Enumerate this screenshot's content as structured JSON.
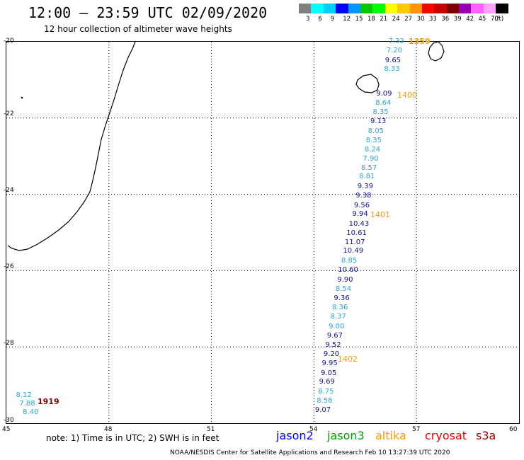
{
  "header": {
    "title": "12:00 – 23:59 UTC 02/09/2020",
    "subtitle": "12 hour collection of altimeter wave heights"
  },
  "legend": {
    "colors": [
      "#808080",
      "#00ffff",
      "#00d0ff",
      "#0000ff",
      "#0096ff",
      "#00c800",
      "#00ff00",
      "#ffff00",
      "#ffc800",
      "#ff9600",
      "#ff0000",
      "#c80000",
      "#800000",
      "#9600b4",
      "#ff64ff",
      "#ffa0ff",
      "#000000"
    ],
    "labels": [
      "3",
      "6",
      "9",
      "12",
      "15",
      "18",
      "21",
      "24",
      "27",
      "30",
      "33",
      "36",
      "39",
      "42",
      "45",
      "70",
      "(ft)"
    ]
  },
  "axes": {
    "x_ticks": [
      "45",
      "48",
      "51",
      "54",
      "57",
      "60"
    ],
    "y_ticks": [
      "-20",
      "-22",
      "-24",
      "-26",
      "-28",
      "-30"
    ]
  },
  "passes": [
    {
      "label": "1359"
    },
    {
      "label": "1400"
    },
    {
      "label": "1401"
    },
    {
      "label": "1402"
    },
    {
      "label": "1919"
    }
  ],
  "observations": [
    {
      "v": "7.32",
      "lon": 56.18,
      "lat": -20.0,
      "c": "#2aa6d8"
    },
    {
      "v": "7.20",
      "lon": 56.12,
      "lat": -20.25,
      "c": "#2aa6d8"
    },
    {
      "v": "9.65",
      "lon": 56.08,
      "lat": -20.5,
      "c": "#1010a0"
    },
    {
      "v": "8.33",
      "lon": 56.05,
      "lat": -20.73,
      "c": "#2aa6d8"
    },
    {
      "v": "9.09",
      "lon": 55.82,
      "lat": -21.38,
      "c": "#1010a0"
    },
    {
      "v": "8.64",
      "lon": 55.8,
      "lat": -21.62,
      "c": "#2aa6d8"
    },
    {
      "v": "8.35",
      "lon": 55.72,
      "lat": -21.85,
      "c": "#2aa6d8"
    },
    {
      "v": "9.13",
      "lon": 55.65,
      "lat": -22.1,
      "c": "#1010a0"
    },
    {
      "v": "8.05",
      "lon": 55.58,
      "lat": -22.35,
      "c": "#2aa6d8"
    },
    {
      "v": "8.35",
      "lon": 55.52,
      "lat": -22.6,
      "c": "#2aa6d8"
    },
    {
      "v": "8.24",
      "lon": 55.48,
      "lat": -22.83,
      "c": "#2aa6d8"
    },
    {
      "v": "7.90",
      "lon": 55.43,
      "lat": -23.08,
      "c": "#2aa6d8"
    },
    {
      "v": "8.57",
      "lon": 55.38,
      "lat": -23.32,
      "c": "#2aa6d8"
    },
    {
      "v": "8.81",
      "lon": 55.32,
      "lat": -23.55,
      "c": "#2aa6d8"
    },
    {
      "v": "9.39",
      "lon": 55.27,
      "lat": -23.8,
      "c": "#1010a0"
    },
    {
      "v": "9.38",
      "lon": 55.22,
      "lat": -24.05,
      "c": "#1010a0"
    },
    {
      "v": "9.56",
      "lon": 55.17,
      "lat": -24.3,
      "c": "#1010a0"
    },
    {
      "v": "9.94",
      "lon": 55.12,
      "lat": -24.53,
      "c": "#1010a0"
    },
    {
      "v": "10.43",
      "lon": 55.02,
      "lat": -24.78,
      "c": "#1010a0"
    },
    {
      "v": "10.61",
      "lon": 54.95,
      "lat": -25.03,
      "c": "#1010a0"
    },
    {
      "v": "11.07",
      "lon": 54.9,
      "lat": -25.27,
      "c": "#1010a0"
    },
    {
      "v": "10.49",
      "lon": 54.85,
      "lat": -25.5,
      "c": "#1010a0"
    },
    {
      "v": "8.85",
      "lon": 54.8,
      "lat": -25.75,
      "c": "#2aa6d8"
    },
    {
      "v": "10.60",
      "lon": 54.7,
      "lat": -26.0,
      "c": "#1010a0"
    },
    {
      "v": "9.90",
      "lon": 54.68,
      "lat": -26.25,
      "c": "#1010a0"
    },
    {
      "v": "8.54",
      "lon": 54.63,
      "lat": -26.5,
      "c": "#2aa6d8"
    },
    {
      "v": "9.36",
      "lon": 54.58,
      "lat": -26.73,
      "c": "#1010a0"
    },
    {
      "v": "8.36",
      "lon": 54.53,
      "lat": -26.97,
      "c": "#2aa6d8"
    },
    {
      "v": "8.37",
      "lon": 54.48,
      "lat": -27.22,
      "c": "#2aa6d8"
    },
    {
      "v": "9.00",
      "lon": 54.43,
      "lat": -27.47,
      "c": "#2aa6d8"
    },
    {
      "v": "9.67",
      "lon": 54.38,
      "lat": -27.72,
      "c": "#1010a0"
    },
    {
      "v": "9.52",
      "lon": 54.33,
      "lat": -27.95,
      "c": "#1010a0"
    },
    {
      "v": "9.20",
      "lon": 54.28,
      "lat": -28.2,
      "c": "#1010a0"
    },
    {
      "v": "9.95",
      "lon": 54.23,
      "lat": -28.45,
      "c": "#1010a0"
    },
    {
      "v": "9.05",
      "lon": 54.2,
      "lat": -28.7,
      "c": "#1010a0"
    },
    {
      "v": "9.69",
      "lon": 54.15,
      "lat": -28.93,
      "c": "#1010a0"
    },
    {
      "v": "8.75",
      "lon": 54.12,
      "lat": -29.18,
      "c": "#2aa6d8"
    },
    {
      "v": "8.56",
      "lon": 54.08,
      "lat": -29.42,
      "c": "#2aa6d8"
    },
    {
      "v": "9.07",
      "lon": 54.03,
      "lat": -29.67,
      "c": "#1010a0"
    },
    {
      "v": "8.12",
      "lon": 45.28,
      "lat": -29.27,
      "c": "#2aa6d8"
    },
    {
      "v": "7.88",
      "lon": 45.38,
      "lat": -29.5,
      "c": "#2aa6d8"
    },
    {
      "v": "8.40",
      "lon": 45.48,
      "lat": -29.73,
      "c": "#2aa6d8"
    }
  ],
  "footer": {
    "note": "note: 1) Time is in UTC; 2) SWH is in feet",
    "missions": [
      {
        "name": "jason2",
        "color": "#0000ff"
      },
      {
        "name": "jason3",
        "color": "#00a000"
      },
      {
        "name": "altika",
        "color": "#ff9900"
      },
      {
        "name": "cryosat",
        "color": "#ee0000"
      },
      {
        "name": "s3a",
        "color": "#990000"
      }
    ],
    "credit": "NOAA/NESDIS Center for Satellite Applications and Research    Feb 10 13:27:39 UTC 2020"
  }
}
